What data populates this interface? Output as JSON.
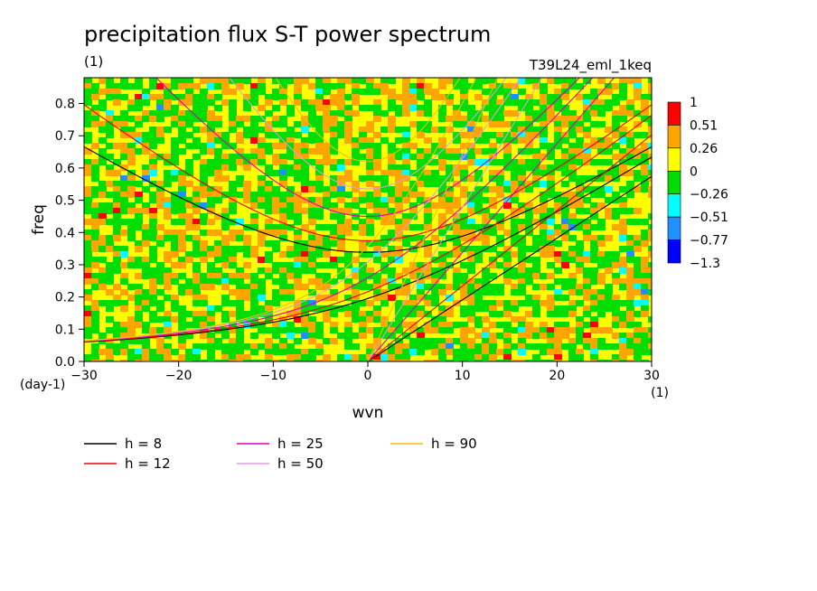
{
  "chart_data": {
    "type": "heatmap",
    "title": "precipitation flux S-T power spectrum",
    "unit_label": "(1)",
    "run_label": "T39L24_eml_1keq",
    "xlabel": "wvn",
    "ylabel": "freq",
    "x_unit": "(1)",
    "y_unit": "(day-1)",
    "xlim": [
      -30,
      30
    ],
    "ylim": [
      0,
      0.88
    ],
    "x_ticks": [
      "−30",
      "−20",
      "−10",
      "0",
      "10",
      "20",
      "30"
    ],
    "y_ticks": [
      "0.0",
      "0.1",
      "0.2",
      "0.3",
      "0.4",
      "0.5",
      "0.6",
      "0.7",
      "0.8"
    ],
    "colorbar": {
      "levels": [
        "1",
        "0.51",
        "0.26",
        "0",
        "−0.26",
        "−0.51",
        "−0.77",
        "−1.3"
      ],
      "colors": [
        "#ff0000",
        "#ffa500",
        "#ffff00",
        "#00dd00",
        "#00ffff",
        "#1e90ff",
        "#0000ff"
      ]
    },
    "field_description_values": {
      "dominant_range": [
        0,
        0.26
      ],
      "min": -1.3,
      "max": 1
    },
    "dispersion_curves": [
      {
        "h": 8,
        "label": "h =  8",
        "color": "#000000"
      },
      {
        "h": 12,
        "label": "h = 12",
        "color": "#ee0000"
      },
      {
        "h": 25,
        "label": "h = 25",
        "color": "#dd00bb"
      },
      {
        "h": 50,
        "label": "h = 50",
        "color": "#dda0dd"
      },
      {
        "h": 90,
        "label": "h = 90",
        "color": "#f0c000"
      }
    ]
  }
}
